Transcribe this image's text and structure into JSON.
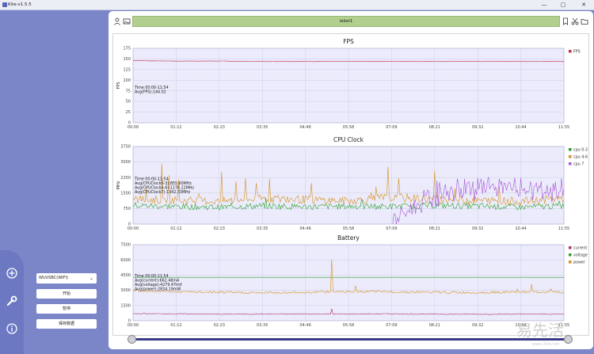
{
  "window": {
    "title": "Kite-v1.5.5",
    "minimize": "—",
    "maximize": "▢",
    "close": "✕"
  },
  "device": {
    "selected": "WUUSBC(WIFI)"
  },
  "buttons": {
    "start": "开始",
    "pause": "暂停",
    "save": "保存数据"
  },
  "toolbar": {
    "label": "label1"
  },
  "watermark": {
    "text": "易先活",
    "sub": "www.3kfe.net"
  },
  "charts": [
    {
      "title": "FPS",
      "ylabel": "FPS",
      "ylim": [
        0,
        175
      ],
      "yticks": [
        "0",
        "25",
        "50",
        "75",
        "100",
        "125",
        "150",
        "175"
      ],
      "xticks": [
        "00:00",
        "01:12",
        "02:23",
        "03:35",
        "04:46",
        "05:58",
        "07:09",
        "08:21",
        "09:32",
        "10:44",
        "11:55"
      ],
      "info": [
        "Time 00:00-11:54",
        "Avg(FPS):144.02"
      ],
      "legend": [
        {
          "name": "FPS",
          "color": "#c0304a"
        }
      ]
    },
    {
      "title": "CPU Clock",
      "ylabel": "MHz",
      "ylim": [
        0,
        3750
      ],
      "yticks": [
        "0",
        "750",
        "1500",
        "2250",
        "3000",
        "3750"
      ],
      "xticks": [
        "00:00",
        "01:12",
        "02:23",
        "03:35",
        "04:46",
        "05:58",
        "07:09",
        "08:21",
        "09:32",
        "10:44",
        "11:55"
      ],
      "info": [
        "Time 00:00-11:54",
        "Avg(CPUClock0-3):855.60MHz",
        "Avg(CPUClock4-6):1176.22MHz",
        "Avg(CPUClock7):1342.33MHz"
      ],
      "legend": [
        {
          "name": "cpu 0-3",
          "color": "#2aa02a"
        },
        {
          "name": "cpu 4-6",
          "color": "#d7901e"
        },
        {
          "name": "cpu 7",
          "color": "#a855d6"
        }
      ]
    },
    {
      "title": "Battery",
      "ylabel": "",
      "ylim": [
        0,
        7500
      ],
      "yticks": [
        "0",
        "1500",
        "3000",
        "4500",
        "6000",
        "7500"
      ],
      "xticks": [
        "00:00",
        "01:12",
        "02:23",
        "03:35",
        "04:46",
        "05:58",
        "07:09",
        "08:21",
        "09:32",
        "10:44",
        "11:55"
      ],
      "info": [
        "Time 00:00-11:54",
        "Avg(current):662.48mA",
        "Avg(voltage):4279.47mV",
        "Avg(power):2834.19mW"
      ],
      "legend": [
        {
          "name": "current",
          "color": "#b0306a"
        },
        {
          "name": "voltage",
          "color": "#2aa02a"
        },
        {
          "name": "power",
          "color": "#d7901e"
        }
      ]
    }
  ],
  "chart_data": [
    {
      "type": "line",
      "title": "FPS",
      "xlabel": "",
      "ylabel": "FPS",
      "x_range": [
        "00:00",
        "11:55"
      ],
      "ylim": [
        0,
        175
      ],
      "series": [
        {
          "name": "FPS",
          "values": [
            146,
            145,
            145,
            144,
            144,
            144,
            144,
            144,
            144,
            144,
            144
          ]
        }
      ]
    },
    {
      "type": "line",
      "title": "CPU Clock",
      "xlabel": "",
      "ylabel": "MHz",
      "x_range": [
        "00:00",
        "11:55"
      ],
      "ylim": [
        0,
        3750
      ],
      "series": [
        {
          "name": "cpu 0-3",
          "values": [
            900,
            850,
            820,
            880,
            840,
            860,
            850,
            900,
            870,
            820,
            880
          ]
        },
        {
          "name": "cpu 4-6",
          "values": [
            1200,
            1150,
            1100,
            1250,
            1180,
            1120,
            1300,
            1200,
            1150,
            1100,
            1250
          ]
        },
        {
          "name": "cpu 7",
          "values": [
            0,
            0,
            0,
            0,
            0,
            0,
            0,
            1350,
            1700,
            1600,
            1450
          ]
        }
      ]
    },
    {
      "type": "line",
      "title": "Battery",
      "xlabel": "",
      "ylabel": "",
      "x_range": [
        "00:00",
        "11:55"
      ],
      "ylim": [
        0,
        7500
      ],
      "series": [
        {
          "name": "current",
          "values": [
            700,
            680,
            650,
            660,
            670,
            660,
            680,
            650,
            640,
            660,
            650
          ]
        },
        {
          "name": "voltage",
          "values": [
            4280,
            4280,
            4280,
            4280,
            4280,
            4280,
            4280,
            4280,
            4280,
            4280,
            4280
          ]
        },
        {
          "name": "power",
          "values": [
            3000,
            2850,
            2800,
            2750,
            2800,
            2900,
            2850,
            2800,
            2780,
            2850,
            2800
          ]
        }
      ]
    }
  ]
}
